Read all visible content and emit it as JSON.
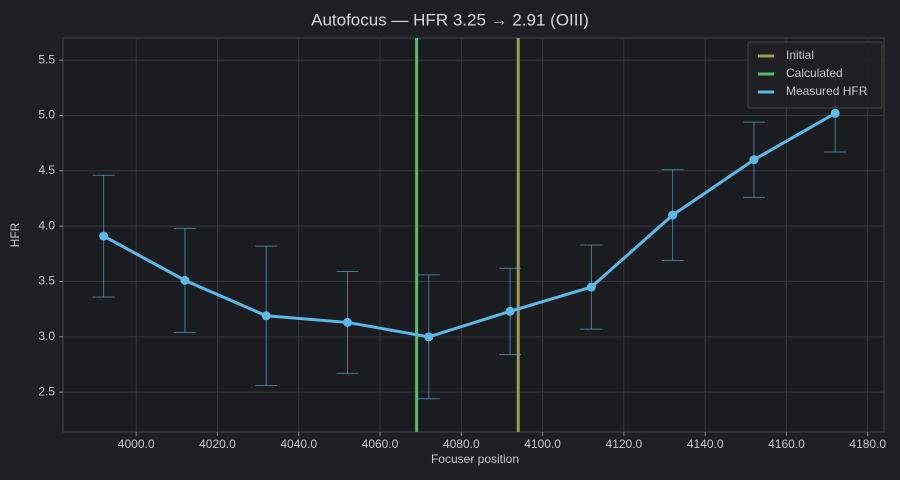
{
  "chart_data": {
    "type": "line",
    "title": "Autofocus — HFR 3.25 → 2.91 (OIII)",
    "x_label": "Focuser position",
    "y_label": "HFR",
    "x": [
      3992,
      4012,
      4032,
      4052,
      4072,
      4092,
      4112,
      4132,
      4152,
      4172
    ],
    "series": [
      {
        "name": "Measured HFR",
        "color": "#5bb8e8",
        "values": [
          3.91,
          3.51,
          3.19,
          3.13,
          3.0,
          3.23,
          3.45,
          4.1,
          4.6,
          5.02
        ],
        "errors": [
          0.55,
          0.47,
          0.63,
          0.46,
          0.56,
          0.39,
          0.38,
          0.41,
          0.34,
          0.35
        ]
      }
    ],
    "vlines": [
      {
        "name": "Initial",
        "color": "#9d9a52",
        "x": 4094
      },
      {
        "name": "Calculated",
        "color": "#4fbf6e",
        "x": 4069
      }
    ],
    "xlim": [
      3982,
      4184
    ],
    "ylim": [
      2.14,
      5.7
    ],
    "xticks": [
      {
        "value": 4000,
        "label": "4000.0"
      },
      {
        "value": 4020,
        "label": "4020.0"
      },
      {
        "value": 4040,
        "label": "4040.0"
      },
      {
        "value": 4060,
        "label": "4060.0"
      },
      {
        "value": 4080,
        "label": "4080.0"
      },
      {
        "value": 4100,
        "label": "4100.0"
      },
      {
        "value": 4120,
        "label": "4120.0"
      },
      {
        "value": 4140,
        "label": "4140.0"
      },
      {
        "value": 4160,
        "label": "4160.0"
      },
      {
        "value": 4180,
        "label": "4180.0"
      }
    ],
    "yticks": [
      2.5,
      {
        "value": 3,
        "label": "3.0"
      },
      3.5,
      {
        "value": 4,
        "label": "4.0"
      },
      4.5,
      {
        "value": 5,
        "label": "5.0"
      },
      5.5
    ],
    "grid": true,
    "legend": "upper right"
  }
}
